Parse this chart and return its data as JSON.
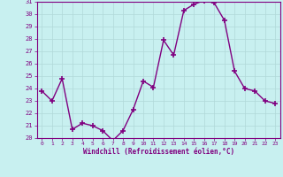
{
  "x": [
    0,
    1,
    2,
    3,
    4,
    5,
    6,
    7,
    8,
    9,
    10,
    11,
    12,
    13,
    14,
    15,
    16,
    17,
    18,
    19,
    20,
    21,
    22,
    23
  ],
  "y": [
    23.8,
    23.0,
    24.8,
    20.7,
    21.2,
    21.0,
    20.6,
    19.8,
    20.6,
    22.3,
    24.6,
    24.1,
    27.9,
    26.7,
    30.3,
    30.8,
    31.1,
    30.9,
    29.5,
    25.4,
    24.0,
    23.8,
    23.0,
    22.8
  ],
  "line_color": "#800080",
  "marker": "+",
  "marker_size": 4,
  "bg_color": "#c8f0f0",
  "grid_color": "#b0d8d8",
  "xlabel": "Windchill (Refroidissement éolien,°C)",
  "ylim": [
    20,
    31
  ],
  "yticks": [
    20,
    21,
    22,
    23,
    24,
    25,
    26,
    27,
    28,
    29,
    30,
    31
  ],
  "xticks": [
    0,
    1,
    2,
    3,
    4,
    5,
    6,
    7,
    8,
    9,
    10,
    11,
    12,
    13,
    14,
    15,
    16,
    17,
    18,
    19,
    20,
    21,
    22,
    23
  ],
  "label_color": "#800080",
  "tick_color": "#800080",
  "spine_color": "#800080",
  "line_width": 1.0,
  "marker_color": "#800080"
}
